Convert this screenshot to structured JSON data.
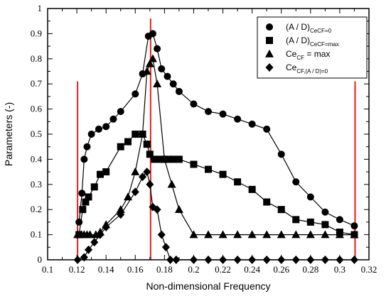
{
  "chart_data": {
    "type": "line",
    "xlabel": "Non-dimensional Frequency",
    "ylabel": "Parameters (-)",
    "xlim": [
      0.1,
      0.32
    ],
    "ylim": [
      0,
      1
    ],
    "x_ticks": [
      "0.1",
      "0.12",
      "0.14",
      "0.16",
      "0.18",
      "0.2",
      "0.22",
      "0.24",
      "0.26",
      "0.28",
      "0.3",
      "0.32"
    ],
    "y_ticks": [
      "0",
      "0.1",
      "0.2",
      "0.3",
      "0.4",
      "0.5",
      "0.6",
      "0.7",
      "0.8",
      "0.9",
      "1"
    ],
    "grid": false,
    "legend_position": "top-right",
    "series": [
      {
        "name": "(A / D)Ce_CF=0",
        "legend": {
          "main": "(A / D)",
          "sub": "CeCF=0"
        },
        "marker": "circle",
        "points": [
          [
            0.1215,
            0.15
          ],
          [
            0.1235,
            0.265
          ],
          [
            0.125,
            0.4
          ],
          [
            0.127,
            0.45
          ],
          [
            0.13,
            0.5
          ],
          [
            0.135,
            0.52
          ],
          [
            0.14,
            0.53
          ],
          [
            0.145,
            0.56
          ],
          [
            0.15,
            0.59
          ],
          [
            0.16,
            0.66
          ],
          [
            0.165,
            0.74
          ],
          [
            0.169,
            0.89
          ],
          [
            0.172,
            0.9
          ],
          [
            0.175,
            0.84
          ],
          [
            0.178,
            0.76
          ],
          [
            0.182,
            0.73
          ],
          [
            0.186,
            0.7
          ],
          [
            0.19,
            0.67
          ],
          [
            0.2,
            0.62
          ],
          [
            0.21,
            0.59
          ],
          [
            0.22,
            0.58
          ],
          [
            0.23,
            0.56
          ],
          [
            0.24,
            0.54
          ],
          [
            0.25,
            0.52
          ],
          [
            0.26,
            0.42
          ],
          [
            0.27,
            0.31
          ],
          [
            0.28,
            0.25
          ],
          [
            0.29,
            0.19
          ],
          [
            0.3,
            0.16
          ],
          [
            0.31,
            0.135
          ]
        ]
      },
      {
        "name": "(A / D)Ce_CF=max",
        "legend": {
          "main": "(A / D)",
          "sub": "CeCF=max"
        },
        "marker": "square",
        "points": [
          [
            0.1215,
            0.1
          ],
          [
            0.124,
            0.2
          ],
          [
            0.126,
            0.23
          ],
          [
            0.128,
            0.25
          ],
          [
            0.132,
            0.29
          ],
          [
            0.136,
            0.34
          ],
          [
            0.14,
            0.35
          ],
          [
            0.15,
            0.45
          ],
          [
            0.155,
            0.47
          ],
          [
            0.16,
            0.5
          ],
          [
            0.165,
            0.5
          ],
          [
            0.168,
            0.46
          ],
          [
            0.17,
            0.42
          ],
          [
            0.173,
            0.4
          ],
          [
            0.177,
            0.4
          ],
          [
            0.18,
            0.4
          ],
          [
            0.183,
            0.4
          ],
          [
            0.186,
            0.4
          ],
          [
            0.19,
            0.4
          ],
          [
            0.2,
            0.38
          ],
          [
            0.21,
            0.36
          ],
          [
            0.22,
            0.34
          ],
          [
            0.23,
            0.31
          ],
          [
            0.24,
            0.28
          ],
          [
            0.25,
            0.23
          ],
          [
            0.26,
            0.2
          ],
          [
            0.27,
            0.16
          ],
          [
            0.28,
            0.15
          ],
          [
            0.29,
            0.14
          ],
          [
            0.3,
            0.11
          ],
          [
            0.31,
            0.1
          ]
        ]
      },
      {
        "name": "Ce_CF = max",
        "legend": {
          "main": "Ce",
          "sub": "CF",
          "tail": " = max"
        },
        "marker": "triangle",
        "points": [
          [
            0.1205,
            0.1
          ],
          [
            0.123,
            0.1
          ],
          [
            0.125,
            0.1
          ],
          [
            0.127,
            0.1
          ],
          [
            0.129,
            0.1
          ],
          [
            0.133,
            0.1
          ],
          [
            0.136,
            0.11
          ],
          [
            0.14,
            0.14
          ],
          [
            0.15,
            0.2
          ],
          [
            0.155,
            0.25
          ],
          [
            0.16,
            0.35
          ],
          [
            0.165,
            0.5
          ],
          [
            0.168,
            0.75
          ],
          [
            0.17,
            0.78
          ],
          [
            0.172,
            0.8
          ],
          [
            0.175,
            0.7
          ],
          [
            0.18,
            0.4
          ],
          [
            0.185,
            0.3
          ],
          [
            0.19,
            0.2
          ],
          [
            0.2,
            0.1
          ],
          [
            0.21,
            0.1
          ],
          [
            0.22,
            0.1
          ],
          [
            0.23,
            0.1
          ],
          [
            0.24,
            0.1
          ],
          [
            0.25,
            0.1
          ],
          [
            0.26,
            0.1
          ],
          [
            0.27,
            0.1
          ],
          [
            0.28,
            0.1
          ],
          [
            0.29,
            0.1
          ],
          [
            0.3,
            0.1
          ],
          [
            0.31,
            0.1
          ]
        ]
      },
      {
        "name": "Ce_CF,(A/D)=0",
        "legend": {
          "main": "Ce",
          "sub": "CF,(A / D)=0"
        },
        "marker": "diamond",
        "points": [
          [
            0.1205,
            0.0
          ],
          [
            0.125,
            0.01
          ],
          [
            0.128,
            0.04
          ],
          [
            0.132,
            0.07
          ],
          [
            0.136,
            0.1
          ],
          [
            0.14,
            0.13
          ],
          [
            0.15,
            0.18
          ],
          [
            0.16,
            0.27
          ],
          [
            0.165,
            0.33
          ],
          [
            0.168,
            0.35
          ],
          [
            0.17,
            0.3
          ],
          [
            0.172,
            0.21
          ],
          [
            0.175,
            0.2
          ],
          [
            0.178,
            0.1
          ],
          [
            0.181,
            0.05
          ],
          [
            0.184,
            0.0
          ],
          [
            0.188,
            0.0
          ],
          [
            0.2,
            0.0
          ],
          [
            0.21,
            0.0
          ],
          [
            0.22,
            0.0
          ],
          [
            0.23,
            0.0
          ],
          [
            0.24,
            0.0
          ],
          [
            0.25,
            0.0
          ],
          [
            0.26,
            0.0
          ],
          [
            0.27,
            0.0
          ],
          [
            0.28,
            0.0
          ],
          [
            0.29,
            0.0
          ],
          [
            0.3,
            0.0
          ],
          [
            0.31,
            0.0
          ]
        ]
      }
    ],
    "vertical_lines": [
      {
        "x": 0.1205,
        "y_top": 0.71,
        "color": "#e0201b"
      },
      {
        "x": 0.1705,
        "y_top": 0.96,
        "color": "#e0201b"
      },
      {
        "x": 0.3105,
        "y_top": 0.71,
        "color": "#e0201b"
      }
    ]
  }
}
